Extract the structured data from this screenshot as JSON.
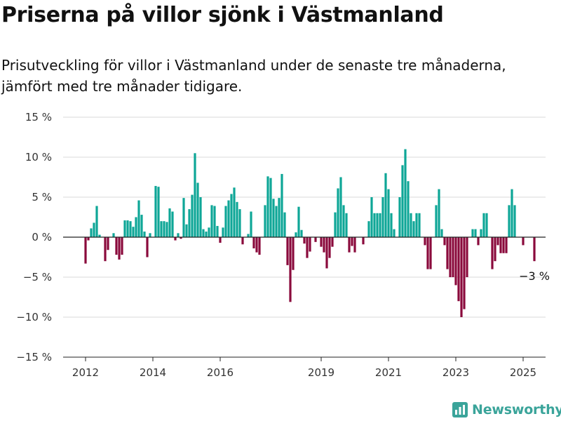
{
  "title": "Priserna på villor sjönk i Västmanland",
  "subtitle": "Prisutveckling för villor i Västmanland under de senaste tre månaderna, jämfört med tre månader tidigare.",
  "brand": "Newsworthy",
  "colors": {
    "positive": "#0ea697",
    "negative": "#8a0a3c",
    "grid": "#d8d8d8",
    "axis": "#222222",
    "brand": "#3aa49a"
  },
  "chart_data": {
    "type": "bar",
    "title": "Priserna på villor sjönk i Västmanland",
    "xlabel": "",
    "ylabel": "",
    "x_start": "2012-01",
    "x_step": "month",
    "ylim": [
      -15,
      15
    ],
    "yticks": [
      15,
      10,
      5,
      0,
      -5,
      -10,
      -15
    ],
    "ytick_labels": [
      "15 %",
      "10 %",
      "5 %",
      "0 %",
      "−5 %",
      "−10 %",
      "−15 %"
    ],
    "xticks": [
      2012,
      2014,
      2016,
      2019,
      2021,
      2023,
      2025
    ],
    "xtick_labels": [
      "2012",
      "2014",
      "2016",
      "2019",
      "2021",
      "2023",
      "2025"
    ],
    "grid": true,
    "last_label": "−3 %",
    "values": [
      -3.3,
      -0.4,
      1.1,
      1.8,
      3.9,
      0.3,
      0,
      -3,
      -1.6,
      0,
      0.5,
      -2.2,
      -2.8,
      -2.2,
      2.1,
      2.1,
      2,
      1.3,
      2.5,
      4.6,
      2.8,
      0.7,
      -2.5,
      0.5,
      0,
      6.4,
      6.3,
      2,
      2,
      1.9,
      3.6,
      3.2,
      -0.4,
      0.5,
      -0.2,
      4.9,
      1.6,
      3.5,
      5.3,
      10.5,
      6.8,
      5,
      1,
      0.7,
      1.2,
      4,
      3.9,
      1.4,
      -0.7,
      1.2,
      3.9,
      4.6,
      5.4,
      6.2,
      4.4,
      3.5,
      -0.9,
      0,
      0.4,
      3.2,
      -1.4,
      -1.9,
      -2.2,
      0,
      4,
      7.6,
      7.4,
      4.8,
      3.9,
      4.9,
      7.9,
      3.1,
      -3.5,
      -8.1,
      -4.1,
      0.6,
      3.8,
      0.9,
      -0.8,
      -2.6,
      -1.8,
      0,
      -0.6,
      0,
      -1.2,
      -1.9,
      -3.9,
      -2.6,
      -1.2,
      3.1,
      6.1,
      7.5,
      4,
      3,
      -1.9,
      -1.1,
      -1.9,
      0,
      0,
      -0.9,
      0,
      2,
      5,
      3,
      3,
      3,
      5,
      8,
      6,
      3,
      1,
      0,
      5,
      9,
      11,
      7,
      3,
      2,
      3,
      3,
      0,
      -1,
      -4,
      -4,
      0,
      4,
      6,
      1,
      -1,
      -4,
      -5,
      -5,
      -6,
      -8,
      -10,
      -9,
      -5,
      0,
      1,
      1,
      -1,
      1,
      3,
      3,
      0,
      -4,
      -3,
      -1,
      -2,
      -2,
      -2,
      4,
      6,
      4,
      0,
      0,
      -1,
      0,
      0,
      0,
      -3
    ]
  }
}
